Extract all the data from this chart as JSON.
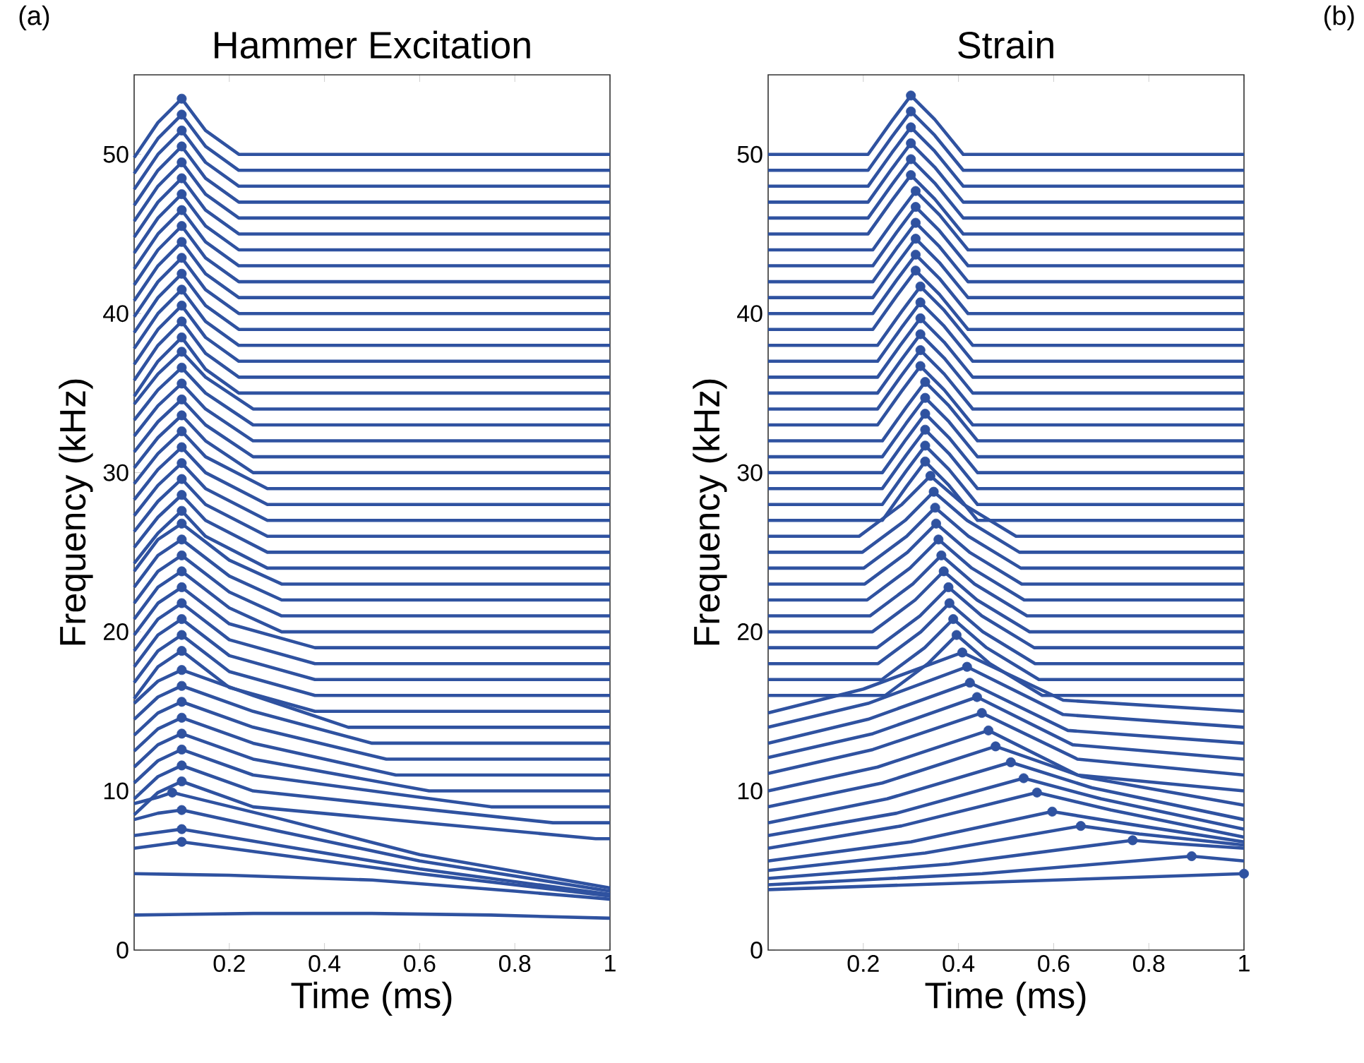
{
  "chart_data": [
    {
      "type": "line",
      "title": "Hammer Excitation",
      "xlabel": "Time (ms)",
      "ylabel": "Frequency (kHz)",
      "annotations": [
        "(a)"
      ],
      "xlim": [
        0,
        1
      ],
      "ylim": [
        0,
        55
      ],
      "xticks": [
        0.2,
        0.4,
        0.6,
        0.8,
        1
      ],
      "yticks": [
        0,
        10,
        20,
        30,
        40,
        50
      ],
      "series": [
        {
          "color": "#2f52a0",
          "x": [
            0,
            0.05,
            0.1,
            0.15,
            0.22,
            1
          ],
          "values": [
            49.8,
            52,
            53.5,
            51.5,
            50,
            50
          ]
        },
        {
          "color": "#2f52a0",
          "x": [
            0,
            0.05,
            0.1,
            0.15,
            0.22,
            1
          ],
          "values": [
            48.8,
            51,
            52.5,
            50.5,
            49,
            49
          ]
        },
        {
          "color": "#2f52a0",
          "x": [
            0,
            0.05,
            0.1,
            0.15,
            0.22,
            1
          ],
          "values": [
            47.8,
            50,
            51.5,
            49.5,
            48,
            48
          ]
        },
        {
          "color": "#2f52a0",
          "x": [
            0,
            0.05,
            0.1,
            0.15,
            0.22,
            1
          ],
          "values": [
            46.8,
            49,
            50.5,
            48.5,
            47,
            47
          ]
        },
        {
          "color": "#2f52a0",
          "x": [
            0,
            0.05,
            0.1,
            0.15,
            0.22,
            1
          ],
          "values": [
            45.8,
            48,
            49.5,
            47.5,
            46,
            46
          ]
        },
        {
          "color": "#2f52a0",
          "x": [
            0,
            0.05,
            0.1,
            0.15,
            0.22,
            1
          ],
          "values": [
            44.8,
            47,
            48.5,
            46.5,
            45,
            45
          ]
        },
        {
          "color": "#2f52a0",
          "x": [
            0,
            0.05,
            0.1,
            0.15,
            0.22,
            1
          ],
          "values": [
            43.8,
            46,
            47.5,
            45.5,
            44,
            44
          ]
        },
        {
          "color": "#2f52a0",
          "x": [
            0,
            0.05,
            0.1,
            0.15,
            0.22,
            1
          ],
          "values": [
            42.8,
            45,
            46.5,
            44.5,
            43,
            43
          ]
        },
        {
          "color": "#2f52a0",
          "x": [
            0,
            0.05,
            0.1,
            0.15,
            0.22,
            1
          ],
          "values": [
            41.8,
            44,
            45.5,
            43.5,
            42,
            42
          ]
        },
        {
          "color": "#2f52a0",
          "x": [
            0,
            0.05,
            0.1,
            0.15,
            0.22,
            1
          ],
          "values": [
            40.8,
            43,
            44.5,
            42.5,
            41,
            41
          ]
        },
        {
          "color": "#2f52a0",
          "x": [
            0,
            0.05,
            0.1,
            0.15,
            0.22,
            1
          ],
          "values": [
            39.8,
            42,
            43.5,
            41.5,
            40,
            40
          ]
        },
        {
          "color": "#2f52a0",
          "x": [
            0,
            0.05,
            0.1,
            0.15,
            0.22,
            1
          ],
          "values": [
            38.8,
            41,
            42.5,
            40.5,
            39,
            39
          ]
        },
        {
          "color": "#2f52a0",
          "x": [
            0,
            0.05,
            0.1,
            0.15,
            0.22,
            1
          ],
          "values": [
            37.8,
            40,
            41.5,
            39.5,
            38,
            38
          ]
        },
        {
          "color": "#2f52a0",
          "x": [
            0,
            0.05,
            0.1,
            0.15,
            0.22,
            1
          ],
          "values": [
            36.8,
            39,
            40.5,
            38.5,
            37,
            37
          ]
        },
        {
          "color": "#2f52a0",
          "x": [
            0,
            0.05,
            0.1,
            0.15,
            0.22,
            1
          ],
          "values": [
            35.8,
            38,
            39.5,
            37.5,
            36,
            36
          ]
        },
        {
          "color": "#2f52a0",
          "x": [
            0,
            0.05,
            0.1,
            0.15,
            0.22,
            1
          ],
          "values": [
            34.8,
            37,
            38.5,
            36.5,
            35,
            35
          ]
        },
        {
          "color": "#2f52a0",
          "x": [
            0,
            0.05,
            0.1,
            0.15,
            0.25,
            1
          ],
          "values": [
            34.3,
            36.2,
            37.6,
            36,
            34,
            34
          ]
        },
        {
          "color": "#2f52a0",
          "x": [
            0,
            0.05,
            0.1,
            0.15,
            0.25,
            1
          ],
          "values": [
            33.3,
            35.2,
            36.6,
            35,
            33,
            33
          ]
        },
        {
          "color": "#2f52a0",
          "x": [
            0,
            0.05,
            0.1,
            0.15,
            0.25,
            1
          ],
          "values": [
            32.3,
            34.2,
            35.6,
            34,
            32,
            32
          ]
        },
        {
          "color": "#2f52a0",
          "x": [
            0,
            0.05,
            0.1,
            0.15,
            0.25,
            1
          ],
          "values": [
            31.3,
            33.2,
            34.6,
            33,
            31,
            31
          ]
        },
        {
          "color": "#2f52a0",
          "x": [
            0,
            0.05,
            0.1,
            0.15,
            0.25,
            1
          ],
          "values": [
            30.3,
            32.2,
            33.6,
            32,
            30,
            30
          ]
        },
        {
          "color": "#2f52a0",
          "x": [
            0,
            0.05,
            0.1,
            0.15,
            0.28,
            1
          ],
          "values": [
            29.3,
            31.2,
            32.6,
            31,
            29,
            29
          ]
        },
        {
          "color": "#2f52a0",
          "x": [
            0,
            0.05,
            0.1,
            0.15,
            0.28,
            1
          ],
          "values": [
            28.3,
            30.2,
            31.6,
            30,
            28,
            28
          ]
        },
        {
          "color": "#2f52a0",
          "x": [
            0,
            0.05,
            0.1,
            0.15,
            0.28,
            1
          ],
          "values": [
            27.3,
            29.2,
            30.6,
            29,
            27,
            27
          ]
        },
        {
          "color": "#2f52a0",
          "x": [
            0,
            0.05,
            0.1,
            0.15,
            0.28,
            1
          ],
          "values": [
            26.3,
            28.2,
            29.6,
            28,
            26,
            26
          ]
        },
        {
          "color": "#2f52a0",
          "x": [
            0,
            0.05,
            0.1,
            0.15,
            0.28,
            1
          ],
          "values": [
            25.3,
            27.2,
            28.6,
            27,
            25,
            25
          ]
        },
        {
          "color": "#2f52a0",
          "x": [
            0,
            0.05,
            0.1,
            0.15,
            0.28,
            1
          ],
          "values": [
            24.3,
            26.2,
            27.6,
            26,
            24,
            24
          ]
        },
        {
          "color": "#2f52a0",
          "x": [
            0,
            0.05,
            0.1,
            0.2,
            0.31,
            1
          ],
          "values": [
            23.8,
            25.8,
            26.8,
            24.5,
            23,
            23
          ]
        },
        {
          "color": "#2f52a0",
          "x": [
            0,
            0.05,
            0.1,
            0.2,
            0.31,
            1
          ],
          "values": [
            22.8,
            24.8,
            25.8,
            23.5,
            22,
            22
          ]
        },
        {
          "color": "#2f52a0",
          "x": [
            0,
            0.05,
            0.1,
            0.2,
            0.31,
            1
          ],
          "values": [
            21.8,
            23.8,
            24.8,
            22.5,
            21,
            21
          ]
        },
        {
          "color": "#2f52a0",
          "x": [
            0,
            0.05,
            0.1,
            0.2,
            0.31,
            1
          ],
          "values": [
            20.8,
            22.8,
            23.8,
            21.5,
            20,
            20
          ]
        },
        {
          "color": "#2f52a0",
          "x": [
            0,
            0.05,
            0.1,
            0.2,
            0.38,
            1
          ],
          "values": [
            19.8,
            21.8,
            22.8,
            20.5,
            19,
            19
          ]
        },
        {
          "color": "#2f52a0",
          "x": [
            0,
            0.05,
            0.1,
            0.2,
            0.38,
            1
          ],
          "values": [
            18.8,
            20.8,
            21.8,
            19.5,
            18,
            18
          ]
        },
        {
          "color": "#2f52a0",
          "x": [
            0,
            0.05,
            0.1,
            0.2,
            0.38,
            1
          ],
          "values": [
            17.8,
            19.8,
            20.8,
            18.5,
            17,
            17
          ]
        },
        {
          "color": "#2f52a0",
          "x": [
            0,
            0.05,
            0.1,
            0.2,
            0.38,
            1
          ],
          "values": [
            16.8,
            18.8,
            19.8,
            17.5,
            16,
            16
          ]
        },
        {
          "color": "#2f52a0",
          "x": [
            0,
            0.05,
            0.1,
            0.2,
            0.38,
            1
          ],
          "values": [
            15.8,
            17.8,
            18.8,
            16.5,
            15,
            15
          ]
        },
        {
          "color": "#2f52a0",
          "x": [
            0,
            0.05,
            0.1,
            0.25,
            0.45,
            1
          ],
          "values": [
            15.5,
            16.9,
            17.6,
            16,
            14,
            14
          ]
        },
        {
          "color": "#2f52a0",
          "x": [
            0,
            0.05,
            0.1,
            0.25,
            0.5,
            1
          ],
          "values": [
            14.5,
            15.9,
            16.6,
            15,
            13,
            13
          ]
        },
        {
          "color": "#2f52a0",
          "x": [
            0,
            0.05,
            0.1,
            0.25,
            0.53,
            1
          ],
          "values": [
            13.5,
            14.9,
            15.6,
            14,
            12,
            12
          ]
        },
        {
          "color": "#2f52a0",
          "x": [
            0,
            0.05,
            0.1,
            0.25,
            0.55,
            1
          ],
          "values": [
            12.5,
            13.9,
            14.6,
            13,
            11,
            11
          ]
        },
        {
          "color": "#2f52a0",
          "x": [
            0,
            0.05,
            0.1,
            0.25,
            0.62,
            1
          ],
          "values": [
            11.5,
            12.9,
            13.6,
            12,
            10,
            10
          ]
        },
        {
          "color": "#2f52a0",
          "x": [
            0,
            0.05,
            0.1,
            0.25,
            0.75,
            1
          ],
          "values": [
            10.5,
            11.9,
            12.6,
            11,
            9,
            9
          ]
        },
        {
          "color": "#2f52a0",
          "x": [
            0,
            0.05,
            0.1,
            0.25,
            0.88,
            1
          ],
          "values": [
            9.5,
            10.9,
            11.6,
            10,
            8,
            8
          ]
        },
        {
          "color": "#2f52a0",
          "x": [
            0,
            0.05,
            0.1,
            0.25,
            0.97,
            1
          ],
          "values": [
            8.5,
            9.9,
            10.6,
            9,
            7,
            7
          ]
        },
        {
          "color": "#2f52a0",
          "x": [
            0,
            0.05,
            0.08,
            0.3,
            0.6,
            1
          ],
          "values": [
            9.2,
            9.6,
            9.9,
            8.3,
            6,
            3.9
          ]
        },
        {
          "color": "#2f52a0",
          "x": [
            0,
            0.05,
            0.1,
            0.3,
            0.6,
            1
          ],
          "values": [
            8.2,
            8.6,
            8.8,
            7.5,
            5.6,
            3.7
          ]
        },
        {
          "color": "#2f52a0",
          "x": [
            0,
            0.05,
            0.1,
            0.3,
            0.6,
            1
          ],
          "values": [
            7.2,
            7.4,
            7.6,
            6.6,
            5.1,
            3.5
          ]
        },
        {
          "color": "#2f52a0",
          "x": [
            0,
            0.05,
            0.1,
            0.3,
            0.6,
            1
          ],
          "values": [
            6.4,
            6.6,
            6.8,
            6,
            4.8,
            3.4
          ]
        },
        {
          "color": "#2f52a0",
          "x": [
            0,
            0.2,
            0.5,
            0.8,
            1
          ],
          "values": [
            4.8,
            4.7,
            4.4,
            3.7,
            3.2
          ]
        },
        {
          "color": "#2f52a0",
          "x": [
            0,
            0.25,
            0.5,
            0.75,
            1
          ],
          "values": [
            2.2,
            2.3,
            2.3,
            2.2,
            2
          ]
        },
        {
          "type": "scatter",
          "marker": "circle",
          "color": "#2f52a0",
          "x": [
            0.1,
            0.1,
            0.1,
            0.1,
            0.1,
            0.1,
            0.1,
            0.1,
            0.1,
            0.1,
            0.1,
            0.1,
            0.1,
            0.1,
            0.1,
            0.1,
            0.1,
            0.1,
            0.1,
            0.1,
            0.1,
            0.1,
            0.1,
            0.1,
            0.1,
            0.1,
            0.1,
            0.1,
            0.1,
            0.1,
            0.1,
            0.1,
            0.1,
            0.1,
            0.1,
            0.1,
            0.1,
            0.1,
            0.1,
            0.1,
            0.1,
            0.1,
            0.1,
            0.1,
            0.08,
            0.1,
            0.1,
            0.1
          ],
          "values": [
            53.5,
            52.5,
            51.5,
            50.5,
            49.5,
            48.5,
            47.5,
            46.5,
            45.5,
            44.5,
            43.5,
            42.5,
            41.5,
            40.5,
            39.5,
            38.5,
            37.6,
            36.6,
            35.6,
            34.6,
            33.6,
            32.6,
            31.6,
            30.6,
            29.6,
            28.6,
            27.6,
            26.8,
            25.8,
            24.8,
            23.8,
            22.8,
            21.8,
            20.8,
            19.8,
            18.8,
            17.6,
            16.6,
            15.6,
            14.6,
            13.6,
            12.6,
            11.6,
            10.6,
            9.9,
            8.8,
            7.6,
            6.8
          ]
        }
      ]
    },
    {
      "type": "line",
      "title": "Strain",
      "xlabel": "Time (ms)",
      "ylabel": "Frequency (kHz)",
      "annotations": [
        "(b)"
      ],
      "xlim": [
        0,
        1
      ],
      "ylim": [
        0,
        55
      ],
      "xticks": [
        0.2,
        0.4,
        0.6,
        0.8,
        1
      ],
      "yticks": [
        0,
        10,
        20,
        30,
        40,
        50
      ],
      "series": [
        {
          "color": "#2f52a0",
          "x": [
            0,
            0.21,
            0.26,
            0.3,
            0.35,
            0.41,
            1
          ],
          "values": [
            50,
            50,
            52.1,
            53.7,
            52.2,
            50,
            50
          ]
        },
        {
          "color": "#2f52a0",
          "x": [
            0,
            0.21,
            0.26,
            0.3,
            0.35,
            0.41,
            1
          ],
          "values": [
            49,
            49,
            51.1,
            52.7,
            51.2,
            49,
            49
          ]
        },
        {
          "color": "#2f52a0",
          "x": [
            0,
            0.21,
            0.26,
            0.3,
            0.35,
            0.41,
            1
          ],
          "values": [
            48,
            48,
            50.1,
            51.7,
            50.2,
            48,
            48
          ]
        },
        {
          "color": "#2f52a0",
          "x": [
            0,
            0.21,
            0.26,
            0.3,
            0.35,
            0.41,
            1
          ],
          "values": [
            47,
            47,
            49.1,
            50.7,
            49.2,
            47,
            47
          ]
        },
        {
          "color": "#2f52a0",
          "x": [
            0,
            0.21,
            0.26,
            0.3,
            0.35,
            0.41,
            1
          ],
          "values": [
            46,
            46,
            48.1,
            49.7,
            48.2,
            46,
            46
          ]
        },
        {
          "color": "#2f52a0",
          "x": [
            0,
            0.21,
            0.26,
            0.3,
            0.35,
            0.41,
            1
          ],
          "values": [
            45,
            45,
            47.1,
            48.7,
            47.2,
            45,
            45
          ]
        },
        {
          "color": "#2f52a0",
          "x": [
            0,
            0.22,
            0.27,
            0.31,
            0.36,
            0.42,
            1
          ],
          "values": [
            44,
            44,
            46.1,
            47.7,
            46.2,
            44,
            44
          ]
        },
        {
          "color": "#2f52a0",
          "x": [
            0,
            0.22,
            0.27,
            0.31,
            0.36,
            0.42,
            1
          ],
          "values": [
            43,
            43,
            45.1,
            46.7,
            45.2,
            43,
            43
          ]
        },
        {
          "color": "#2f52a0",
          "x": [
            0,
            0.22,
            0.27,
            0.31,
            0.36,
            0.42,
            1
          ],
          "values": [
            42,
            42,
            44.1,
            45.7,
            44.2,
            42,
            42
          ]
        },
        {
          "color": "#2f52a0",
          "x": [
            0,
            0.22,
            0.27,
            0.31,
            0.36,
            0.42,
            1
          ],
          "values": [
            41,
            41,
            43.1,
            44.7,
            43.2,
            41,
            41
          ]
        },
        {
          "color": "#2f52a0",
          "x": [
            0,
            0.22,
            0.27,
            0.31,
            0.36,
            0.42,
            1
          ],
          "values": [
            40,
            40,
            42.1,
            43.7,
            42.2,
            40,
            40
          ]
        },
        {
          "color": "#2f52a0",
          "x": [
            0,
            0.22,
            0.27,
            0.31,
            0.36,
            0.42,
            1
          ],
          "values": [
            39,
            39,
            41.1,
            42.7,
            41.2,
            39,
            39
          ]
        },
        {
          "color": "#2f52a0",
          "x": [
            0,
            0.23,
            0.28,
            0.32,
            0.37,
            0.43,
            1
          ],
          "values": [
            38,
            38,
            40.1,
            41.7,
            40.2,
            38,
            38
          ]
        },
        {
          "color": "#2f52a0",
          "x": [
            0,
            0.23,
            0.28,
            0.32,
            0.37,
            0.43,
            1
          ],
          "values": [
            37,
            37,
            39.1,
            40.7,
            39.2,
            37,
            37
          ]
        },
        {
          "color": "#2f52a0",
          "x": [
            0,
            0.23,
            0.28,
            0.32,
            0.37,
            0.43,
            1
          ],
          "values": [
            36,
            36,
            38.1,
            39.7,
            38.2,
            36,
            36
          ]
        },
        {
          "color": "#2f52a0",
          "x": [
            0,
            0.23,
            0.28,
            0.32,
            0.37,
            0.43,
            1
          ],
          "values": [
            35,
            35,
            37.1,
            38.7,
            37.2,
            35,
            35
          ]
        },
        {
          "color": "#2f52a0",
          "x": [
            0,
            0.23,
            0.28,
            0.32,
            0.37,
            0.43,
            1
          ],
          "values": [
            34,
            34,
            36.1,
            37.7,
            36.2,
            34,
            34
          ]
        },
        {
          "color": "#2f52a0",
          "x": [
            0,
            0.23,
            0.28,
            0.32,
            0.37,
            0.43,
            1
          ],
          "values": [
            33,
            33,
            35.1,
            36.7,
            35.2,
            33,
            33
          ]
        },
        {
          "color": "#2f52a0",
          "x": [
            0,
            0.24,
            0.29,
            0.33,
            0.38,
            0.44,
            1
          ],
          "values": [
            32,
            32,
            34.1,
            35.7,
            34.2,
            32,
            32
          ]
        },
        {
          "color": "#2f52a0",
          "x": [
            0,
            0.24,
            0.29,
            0.33,
            0.38,
            0.44,
            1
          ],
          "values": [
            31,
            31,
            33.1,
            34.7,
            33.2,
            31,
            31
          ]
        },
        {
          "color": "#2f52a0",
          "x": [
            0,
            0.24,
            0.29,
            0.33,
            0.38,
            0.44,
            1
          ],
          "values": [
            30,
            30,
            32.1,
            33.7,
            32.2,
            30,
            30
          ]
        },
        {
          "color": "#2f52a0",
          "x": [
            0,
            0.24,
            0.29,
            0.33,
            0.38,
            0.44,
            1
          ],
          "values": [
            29,
            29,
            31.1,
            32.7,
            31.2,
            29,
            29
          ]
        },
        {
          "color": "#2f52a0",
          "x": [
            0,
            0.24,
            0.29,
            0.33,
            0.38,
            0.44,
            1
          ],
          "values": [
            28,
            28,
            30.1,
            31.7,
            30.2,
            28,
            28
          ]
        },
        {
          "color": "#2f52a0",
          "x": [
            0,
            0.24,
            0.29,
            0.33,
            0.38,
            0.44,
            1
          ],
          "values": [
            27,
            27,
            29.1,
            30.7,
            29.2,
            27,
            27
          ]
        },
        {
          "color": "#2f52a0",
          "x": [
            0,
            0.191,
            0.281,
            0.341,
            0.411,
            0.521,
            1
          ],
          "values": [
            26,
            26,
            28,
            29.8,
            28,
            26,
            26
          ]
        },
        {
          "color": "#2f52a0",
          "x": [
            0,
            0.198,
            0.288,
            0.348,
            0.418,
            0.528,
            1
          ],
          "values": [
            25,
            25,
            27,
            28.8,
            27,
            25,
            25
          ]
        },
        {
          "color": "#2f52a0",
          "x": [
            0,
            0.201,
            0.291,
            0.351,
            0.421,
            0.531,
            1
          ],
          "values": [
            24,
            24,
            26,
            27.8,
            26,
            24,
            24
          ]
        },
        {
          "color": "#2f52a0",
          "x": [
            0,
            0.203,
            0.293,
            0.353,
            0.423,
            0.533,
            1
          ],
          "values": [
            23,
            23,
            25,
            26.8,
            25,
            23,
            23
          ]
        },
        {
          "color": "#2f52a0",
          "x": [
            0,
            0.208,
            0.298,
            0.358,
            0.428,
            0.538,
            1
          ],
          "values": [
            22,
            22,
            24,
            25.8,
            24,
            22,
            22
          ]
        },
        {
          "color": "#2f52a0",
          "x": [
            0,
            0.214,
            0.304,
            0.364,
            0.434,
            0.544,
            1
          ],
          "values": [
            21,
            21,
            23,
            24.8,
            23,
            21,
            21
          ]
        },
        {
          "color": "#2f52a0",
          "x": [
            0,
            0.219,
            0.309,
            0.369,
            0.439,
            0.549,
            1
          ],
          "values": [
            20,
            20,
            22,
            23.8,
            22,
            20,
            20
          ]
        },
        {
          "color": "#2f52a0",
          "x": [
            0,
            0.229,
            0.319,
            0.379,
            0.449,
            0.559,
            1
          ],
          "values": [
            19,
            19,
            21,
            22.8,
            21,
            19,
            19
          ]
        },
        {
          "color": "#2f52a0",
          "x": [
            0,
            0.231,
            0.321,
            0.381,
            0.451,
            0.561,
            1
          ],
          "values": [
            18,
            18,
            20,
            21.8,
            20,
            18,
            18
          ]
        },
        {
          "color": "#2f52a0",
          "x": [
            0,
            0.239,
            0.329,
            0.389,
            0.459,
            0.569,
            1
          ],
          "values": [
            17,
            17,
            19,
            20.8,
            19,
            17,
            17
          ]
        },
        {
          "color": "#2f52a0",
          "x": [
            0,
            0.246,
            0.336,
            0.396,
            0.466,
            0.576,
            1
          ],
          "values": [
            16,
            16,
            18,
            19.8,
            18,
            16,
            16
          ]
        },
        {
          "color": "#2f52a0",
          "x": [
            0,
            0.2,
            0.408,
            0.62,
            1
          ],
          "values": [
            14.9,
            16.4,
            18.7,
            15.7,
            15
          ]
        },
        {
          "color": "#2f52a0",
          "x": [
            0,
            0.21,
            0.418,
            0.62,
            1
          ],
          "values": [
            14,
            15.5,
            17.8,
            14.8,
            14
          ]
        },
        {
          "color": "#2f52a0",
          "x": [
            0,
            0.21,
            0.424,
            0.63,
            1
          ],
          "values": [
            13,
            14.5,
            16.8,
            13.8,
            13
          ]
        },
        {
          "color": "#2f52a0",
          "x": [
            0,
            0.22,
            0.439,
            0.64,
            1
          ],
          "values": [
            12.1,
            13.6,
            15.9,
            12.9,
            12
          ]
        },
        {
          "color": "#2f52a0",
          "x": [
            0,
            0.22,
            0.449,
            0.65,
            1
          ],
          "values": [
            11.1,
            12.6,
            14.9,
            12,
            11
          ]
        },
        {
          "color": "#2f52a0",
          "x": [
            0,
            0.23,
            0.463,
            0.65,
            1
          ],
          "values": [
            10,
            11.5,
            13.8,
            11,
            10
          ]
        },
        {
          "color": "#2f52a0",
          "x": [
            0,
            0.24,
            0.478,
            0.66,
            1
          ],
          "values": [
            9,
            10.5,
            12.8,
            10.9,
            9.1
          ]
        },
        {
          "color": "#2f52a0",
          "x": [
            0,
            0.25,
            0.51,
            0.68,
            1
          ],
          "values": [
            8,
            9.5,
            11.8,
            10.2,
            8.2
          ]
        },
        {
          "color": "#2f52a0",
          "x": [
            0,
            0.27,
            0.537,
            0.7,
            1
          ],
          "values": [
            7.2,
            8.6,
            10.8,
            9.5,
            7.6
          ]
        },
        {
          "color": "#2f52a0",
          "x": [
            0,
            0.28,
            0.565,
            0.72,
            1
          ],
          "values": [
            6.4,
            7.8,
            9.9,
            8.8,
            7.1
          ]
        },
        {
          "color": "#2f52a0",
          "x": [
            0,
            0.3,
            0.597,
            0.74,
            1
          ],
          "values": [
            5.6,
            6.8,
            8.7,
            8,
            6.8
          ]
        },
        {
          "color": "#2f52a0",
          "x": [
            0,
            0.33,
            0.657,
            0.78,
            1
          ],
          "values": [
            5,
            6.1,
            7.8,
            7.3,
            6.6
          ]
        },
        {
          "color": "#2f52a0",
          "x": [
            0,
            0.38,
            0.766,
            0.85,
            1
          ],
          "values": [
            4.5,
            5.4,
            6.9,
            6.7,
            6.4
          ]
        },
        {
          "color": "#2f52a0",
          "x": [
            0,
            0.45,
            0.89,
            1
          ],
          "values": [
            4.1,
            4.8,
            5.9,
            5.6
          ]
        },
        {
          "color": "#2f52a0",
          "x": [
            0,
            0.5,
            1
          ],
          "values": [
            3.8,
            4.3,
            4.8
          ]
        },
        {
          "type": "scatter",
          "marker": "circle",
          "color": "#2f52a0",
          "x": [
            0.3,
            0.3,
            0.3,
            0.3,
            0.3,
            0.3,
            0.31,
            0.31,
            0.31,
            0.31,
            0.31,
            0.31,
            0.32,
            0.32,
            0.32,
            0.32,
            0.32,
            0.32,
            0.33,
            0.33,
            0.33,
            0.33,
            0.33,
            0.33,
            0.341,
            0.348,
            0.351,
            0.353,
            0.358,
            0.364,
            0.369,
            0.379,
            0.381,
            0.389,
            0.396,
            0.408,
            0.418,
            0.424,
            0.439,
            0.449,
            0.463,
            0.478,
            0.51,
            0.537,
            0.565,
            0.597,
            0.657,
            0.766,
            0.89,
            1
          ],
          "values": [
            53.7,
            52.7,
            51.7,
            50.7,
            49.7,
            48.7,
            47.7,
            46.7,
            45.7,
            44.7,
            43.7,
            42.7,
            41.7,
            40.7,
            39.7,
            38.7,
            37.7,
            36.7,
            35.7,
            34.7,
            33.7,
            32.7,
            31.7,
            30.7,
            29.8,
            28.8,
            27.8,
            26.8,
            25.8,
            24.8,
            23.8,
            22.8,
            21.8,
            20.8,
            19.8,
            18.7,
            17.8,
            16.8,
            15.9,
            14.9,
            13.8,
            12.8,
            11.8,
            10.8,
            9.9,
            8.7,
            7.8,
            6.9,
            5.9,
            4.8
          ]
        }
      ]
    }
  ]
}
